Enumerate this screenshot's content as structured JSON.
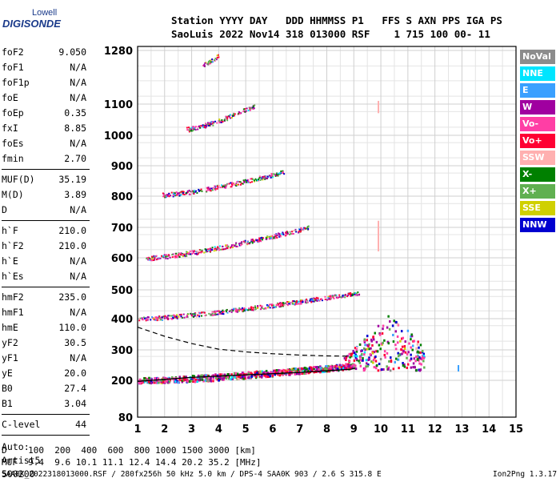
{
  "logo": {
    "line1": "Lowell",
    "line2": "DIGISONDE"
  },
  "header": {
    "row1": "Station YYYY DAY   DDD HHMMSS P1   FFS S AXN PPS IGA PS",
    "row2": "SaoLuis 2022 Nov14 318 013000 RSF    1 715 100 00- 11"
  },
  "params": {
    "group1": [
      {
        "label": "foF2",
        "value": "9.050"
      },
      {
        "label": "foF1",
        "value": "N/A"
      },
      {
        "label": "foF1p",
        "value": "N/A"
      },
      {
        "label": "foE",
        "value": "N/A"
      },
      {
        "label": "foEp",
        "value": "0.35"
      },
      {
        "label": "fxI",
        "value": "8.85"
      },
      {
        "label": "foEs",
        "value": "N/A"
      },
      {
        "label": "fmin",
        "value": "2.70"
      }
    ],
    "group2": [
      {
        "label": "MUF(D)",
        "value": "35.19"
      },
      {
        "label": "M(D)",
        "value": "3.89"
      },
      {
        "label": "D",
        "value": "N/A"
      }
    ],
    "group3": [
      {
        "label": "h`F",
        "value": "210.0"
      },
      {
        "label": "h`F2",
        "value": "210.0"
      },
      {
        "label": "h`E",
        "value": "N/A"
      },
      {
        "label": "h`Es",
        "value": "N/A"
      }
    ],
    "group4": [
      {
        "label": "hmF2",
        "value": "235.0"
      },
      {
        "label": "hmF1",
        "value": "N/A"
      },
      {
        "label": "hmE",
        "value": "110.0"
      },
      {
        "label": "yF2",
        "value": "30.5"
      },
      {
        "label": "yF1",
        "value": "N/A"
      },
      {
        "label": "yE",
        "value": "20.0"
      },
      {
        "label": "B0",
        "value": "27.4"
      },
      {
        "label": "B1",
        "value": "3.04"
      }
    ],
    "group5": [
      {
        "label": "C-level",
        "value": "44"
      }
    ],
    "auto": [
      "Auto:",
      "Artist5",
      "500200"
    ]
  },
  "legend": [
    {
      "label": "NoVal",
      "color": "#8c8c8c"
    },
    {
      "label": "NNE",
      "color": "#00e5ff"
    },
    {
      "label": "E",
      "color": "#3aa0ff"
    },
    {
      "label": "W",
      "color": "#a000a0"
    },
    {
      "label": "Vo-",
      "color": "#ff3ea5"
    },
    {
      "label": "Vo+",
      "color": "#ff0033"
    },
    {
      "label": "SSW",
      "color": "#ffb0b0"
    },
    {
      "label": "X-",
      "color": "#008000"
    },
    {
      "label": "X+",
      "color": "#60b050"
    },
    {
      "label": "SSE",
      "color": "#d0d000"
    },
    {
      "label": "NNW",
      "color": "#0000d0"
    }
  ],
  "footer": {
    "d_row": "D    100  200  400  600  800 1000 1500 3000 [km]",
    "muf_row": "MUF  9.4  9.6 10.1 11.1 12.4 14.4 20.2 35.2 [MHz]",
    "file_info": "SAA0K_2022318013000.RSF / 280fx256h 50 kHz 5.0 km / DPS-4 SAA0K 903 / 2.6 S 315.8 E",
    "version": "Ion2Png 1.3.17"
  },
  "chart_data": {
    "type": "scatter",
    "title": "",
    "xlabel": "",
    "ylabel": "",
    "xlim": [
      1,
      15
    ],
    "x_ticks": [
      1,
      2,
      3,
      4,
      5,
      6,
      7,
      8,
      9,
      10,
      11,
      12,
      13,
      14,
      15
    ],
    "y_ticks": [
      80,
      200,
      300,
      400,
      500,
      600,
      700,
      800,
      900,
      1000,
      1100,
      1280
    ],
    "y_scale": "log",
    "grid": true,
    "traces": [
      {
        "name": "hop1",
        "f_start": 1.0,
        "f_end": 9.0,
        "h_start": 200,
        "h_end": 245
      },
      {
        "name": "hop2",
        "f_start": 1.0,
        "f_end": 9.2,
        "h_start": 400,
        "h_end": 490
      },
      {
        "name": "hop3",
        "f_start": 1.3,
        "f_end": 7.3,
        "h_start": 600,
        "h_end": 700
      },
      {
        "name": "hop4",
        "f_start": 1.9,
        "f_end": 6.4,
        "h_start": 805,
        "h_end": 880
      },
      {
        "name": "hop5",
        "f_start": 2.8,
        "f_end": 5.3,
        "h_start": 1020,
        "h_end": 1095
      },
      {
        "name": "hop6",
        "f_start": 3.4,
        "f_end": 4.0,
        "h_start": 1230,
        "h_end": 1265
      }
    ],
    "profile_solid": {
      "f": [
        1.0,
        3,
        5,
        7,
        8.2,
        8.9,
        9.05
      ],
      "h": [
        195,
        208,
        215,
        222,
        228,
        232,
        235
      ]
    },
    "profile_dashed": {
      "f": [
        1.0,
        2,
        3,
        4,
        5,
        6,
        7,
        8,
        8.8
      ],
      "h": [
        370,
        340,
        318,
        302,
        292,
        285,
        280,
        277,
        276
      ]
    }
  }
}
